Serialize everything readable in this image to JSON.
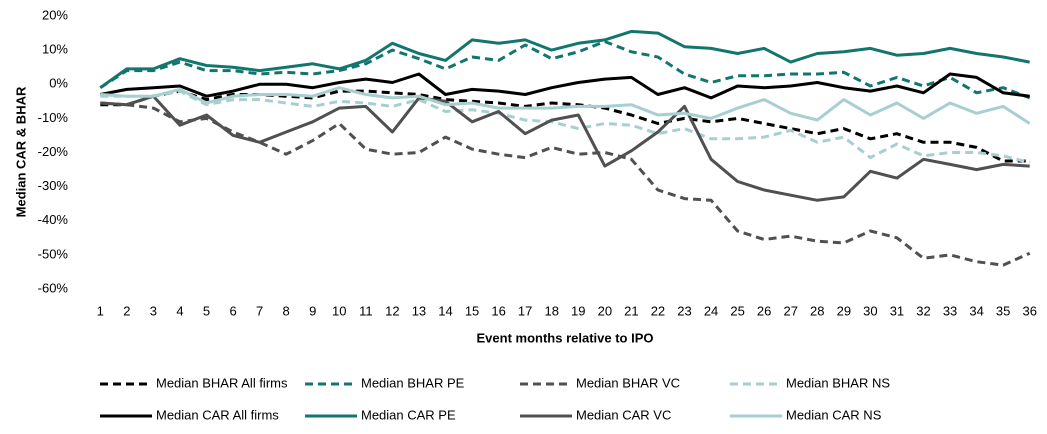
{
  "chart_data": {
    "type": "line",
    "y_label": "Median CAR & BHAR",
    "x_label": "Event months relative to IPO",
    "categories": [
      "1",
      "2",
      "3",
      "4",
      "5",
      "6",
      "7",
      "8",
      "9",
      "10",
      "11",
      "12",
      "13",
      "14",
      "15",
      "16",
      "17",
      "18",
      "19",
      "20",
      "21",
      "22",
      "23",
      "24",
      "25",
      "26",
      "27",
      "28",
      "29",
      "30",
      "31",
      "32",
      "33",
      "34",
      "35",
      "36"
    ],
    "ylim": [
      -60,
      20
    ],
    "yticks": [
      {
        "value": -60,
        "label": "-60%"
      },
      {
        "value": -50,
        "label": "-50%"
      },
      {
        "value": -40,
        "label": "-40%"
      },
      {
        "value": -30,
        "label": "-30%"
      },
      {
        "value": -20,
        "label": "-20%"
      },
      {
        "value": -10,
        "label": "-10%"
      },
      {
        "value": 0,
        "label": "0%"
      },
      {
        "value": 10,
        "label": "10%"
      },
      {
        "value": 20,
        "label": "20%"
      }
    ],
    "legend": "bottom",
    "series": [
      {
        "name": "Median BHAR All firms",
        "color": "#000000",
        "dashed": true,
        "values": [
          -6,
          -6,
          -3.5,
          -2,
          -4.5,
          -3,
          -3,
          -3.5,
          -4,
          -2,
          -2,
          -2.5,
          -3,
          -4.5,
          -5,
          -5.5,
          -6.5,
          -5.5,
          -6,
          -7,
          -9,
          -11.5,
          -10,
          -11,
          -10,
          -11.5,
          -13,
          -14.5,
          -13,
          -16,
          -14.5,
          -17,
          -17,
          -18.5,
          -22.5,
          -22.5
        ]
      },
      {
        "name": "Median BHAR PE",
        "color": "#13766e",
        "dashed": true,
        "values": [
          -1,
          4,
          4,
          6.5,
          4,
          4,
          3,
          3.5,
          3,
          4,
          6,
          10,
          7.5,
          4.5,
          8,
          7,
          11.5,
          7.5,
          9.5,
          12.5,
          9.5,
          8,
          3,
          0.5,
          2.5,
          2.5,
          3,
          3,
          3.5,
          -0.5,
          2,
          -0.5,
          2,
          -2.5,
          -1,
          -4
        ]
      },
      {
        "name": "Median BHAR VC",
        "color": "#505050",
        "dashed": true,
        "values": [
          -5.5,
          -6,
          -7,
          -11,
          -10,
          -14,
          -17,
          -20.5,
          -16.5,
          -11.5,
          -19,
          -20.5,
          -20,
          -15.5,
          -19,
          -20.5,
          -21.5,
          -18.5,
          -20.5,
          -20,
          -22,
          -31,
          -33.5,
          -34,
          -43,
          -45.5,
          -44.5,
          -46,
          -46.5,
          -43,
          -45,
          -51,
          -50,
          -52,
          -53,
          -49.5
        ]
      },
      {
        "name": "Median BHAR NS",
        "color": "#a8cfd0",
        "dashed": true,
        "values": [
          -3.5,
          -3.5,
          -3.5,
          -2,
          -6,
          -4.5,
          -4.5,
          -5.5,
          -6.5,
          -5,
          -5.5,
          -6.5,
          -4.5,
          -8,
          -7.5,
          -8.5,
          -10.5,
          -11,
          -13,
          -11.5,
          -12,
          -14.5,
          -13,
          -16,
          -16,
          -15.5,
          -13.5,
          -17,
          -15.5,
          -21.5,
          -17.5,
          -21,
          -20,
          -20,
          -21,
          -23
        ]
      },
      {
        "name": "Median CAR All firms",
        "color": "#000000",
        "dashed": false,
        "values": [
          -3,
          -1.5,
          -1,
          -0.5,
          -3.5,
          -2,
          0,
          0,
          -1,
          0.5,
          1.5,
          0.5,
          3,
          -3,
          -1.5,
          -2,
          -3,
          -1,
          0.5,
          1.5,
          2,
          -3,
          -1,
          -4,
          -0.5,
          -1,
          -0.5,
          0.5,
          -1,
          -2,
          -0.5,
          -2.5,
          3,
          2,
          -2.5,
          -3.5
        ]
      },
      {
        "name": "Median CAR PE",
        "color": "#13766e",
        "dashed": false,
        "values": [
          -1,
          4.5,
          4.5,
          7.5,
          5.5,
          5,
          4,
          5,
          6,
          4.5,
          7,
          12,
          9,
          7,
          13,
          12,
          13,
          10,
          12,
          13,
          15.5,
          15,
          11,
          10.5,
          9,
          10.5,
          6.5,
          9,
          9.5,
          10.5,
          8.5,
          9,
          10.5,
          9,
          8,
          6.5
        ]
      },
      {
        "name": "Median CAR VC",
        "color": "#505050",
        "dashed": false,
        "values": [
          -5.5,
          -6,
          -3.5,
          -12,
          -9,
          -15,
          -17,
          -14,
          -11,
          -7,
          -6.5,
          -14,
          -4,
          -5,
          -11,
          -8,
          -14.5,
          -10.5,
          -9,
          -24,
          -19.5,
          -14,
          -6.5,
          -22,
          -28.5,
          -31,
          -32.5,
          -34,
          -33,
          -25.5,
          -27.5,
          -22,
          -23.5,
          -25,
          -23.5,
          -24
        ]
      },
      {
        "name": "Median CAR NS",
        "color": "#a8cfd0",
        "dashed": false,
        "values": [
          -3,
          -3.5,
          -3.5,
          -1.5,
          -5.5,
          -3.5,
          -3,
          -3,
          -3.5,
          -1,
          -3,
          -4,
          -3.5,
          -6,
          -5.5,
          -7,
          -7,
          -7,
          -6.5,
          -6.5,
          -6,
          -9,
          -8.5,
          -10,
          -7,
          -4.5,
          -8.5,
          -10.5,
          -4.5,
          -9,
          -5.5,
          -10,
          -5.5,
          -8.5,
          -6.5,
          -11.5
        ]
      }
    ]
  }
}
